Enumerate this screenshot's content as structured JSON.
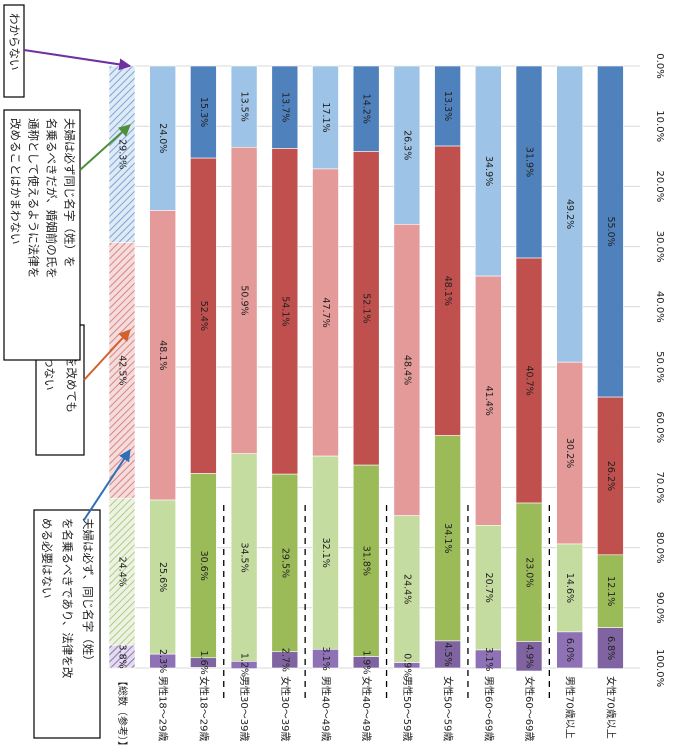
{
  "chart_data": {
    "type": "bar",
    "orientation": "horizontal-stacked-100",
    "page_rotation": "rotated 90 degrees clockwise",
    "categories": [
      "【総数（参考）】",
      "男性18～29歳",
      "女性18～29歳",
      "男性30～39歳",
      "女性30～39歳",
      "男性40～49歳",
      "女性40～49歳",
      "男性50～59歳",
      "女性50～59歳",
      "男性60～69歳",
      "女性60～69歳",
      "男性70歳以上",
      "女性70歳以上"
    ],
    "series": [
      {
        "name": "夫婦は必ず、同じ名字（姓）を名乗るべきであり、法律を改める必要はない",
        "values": [
          29.3,
          24.0,
          15.3,
          13.5,
          13.7,
          17.1,
          14.2,
          26.3,
          13.3,
          34.9,
          31.9,
          49.2,
          55.0
        ]
      },
      {
        "name": "法律を改めてもかまわない",
        "values": [
          42.5,
          48.1,
          52.4,
          50.9,
          54.1,
          47.7,
          52.1,
          48.4,
          48.1,
          41.4,
          40.7,
          30.2,
          26.2
        ]
      },
      {
        "name": "夫婦は必ず同じ名字（姓）を名乗るべきだが、婚姻前の氏を通称として使えるように法律を改めることはかまわない",
        "values": [
          24.4,
          25.6,
          30.6,
          34.5,
          29.5,
          32.1,
          31.8,
          24.4,
          34.1,
          20.7,
          23.0,
          14.6,
          12.1
        ]
      },
      {
        "name": "わからない",
        "values": [
          3.8,
          2.3,
          1.6,
          1.2,
          2.7,
          3.1,
          1.9,
          0.9,
          4.5,
          3.1,
          4.9,
          6.0,
          6.8
        ]
      }
    ],
    "value_labels": [
      [
        "29.3%",
        "42.5%",
        "24.4%",
        "3.8%"
      ],
      [
        "24.0%",
        "48.1%",
        "25.6%",
        "2.3%"
      ],
      [
        "15.3%",
        "52.4%",
        "30.6%",
        "1.6%"
      ],
      [
        "13.5%",
        "50.9%",
        "34.5%",
        "1.2%"
      ],
      [
        "13.7%",
        "54.1%",
        "29.5%",
        "2.7%"
      ],
      [
        "17.1%",
        "47.7%",
        "32.1%",
        "3.1%"
      ],
      [
        "14.2%",
        "52.1%",
        "31.8%",
        "1.9%"
      ],
      [
        "26.3%",
        "48.4%",
        "24.4%",
        "0.9%"
      ],
      [
        "13.3%",
        "48.1%",
        "34.1%",
        "4.5%"
      ],
      [
        "34.9%",
        "41.4%",
        "20.7%",
        "3.1%"
      ],
      [
        "31.9%",
        "40.7%",
        "23.0%",
        "4.9%"
      ],
      [
        "49.2%",
        "30.2%",
        "14.6%",
        "6.0%"
      ],
      [
        "55.0%",
        "26.2%",
        "12.1%",
        "6.8%"
      ]
    ],
    "axis_ticks": [
      "0.0%",
      "10.0%",
      "20.0%",
      "30.0%",
      "40.0%",
      "50.0%",
      "60.0%",
      "70.0%",
      "80.0%",
      "90.0%",
      "100.0%"
    ],
    "xlim": [
      0,
      100
    ],
    "grid": true,
    "colors": {
      "male": [
        "#9dc3e6",
        "#e39a98",
        "#c5dca0",
        "#8e72b5"
      ],
      "female": [
        "#4f81bd",
        "#c0504d",
        "#9bbb59",
        "#8064a2"
      ],
      "total": [
        "#9dc3e6",
        "#e39a98",
        "#c5dca0",
        "#8e72b5"
      ],
      "arrows": [
        "#2f6fb8",
        "#d1622e",
        "#4f8f3a",
        "#7030a0"
      ]
    },
    "legend_labels": [
      "夫婦は必ず、同じ名字（姓）を名乗るべきであり、法律を改める必要はない",
      "法律を改めてもかまわない",
      "夫婦は必ず同じ名字（姓）を名乗るべきだが、婚姻前の氏を通称として使えるように法律を改めることはかまわない",
      "わからない"
    ]
  }
}
